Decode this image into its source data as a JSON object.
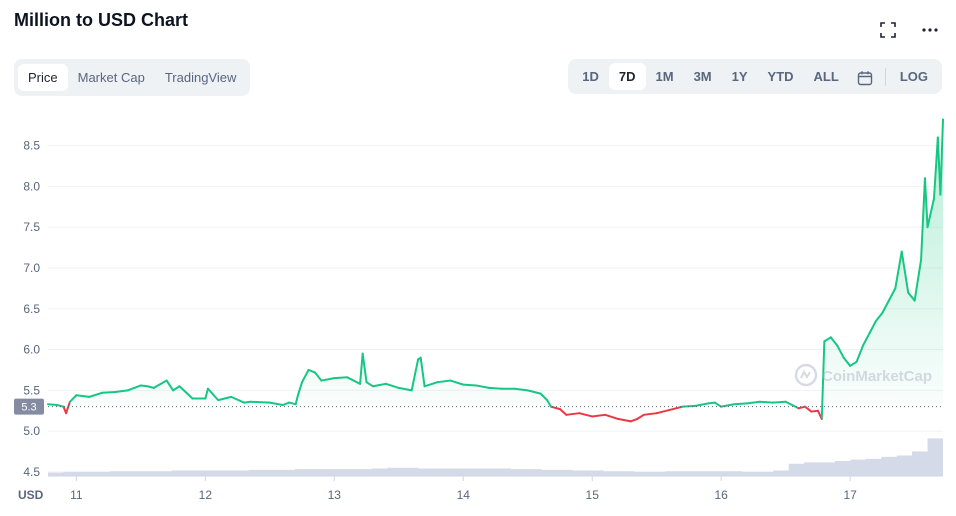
{
  "header": {
    "title": "Million to USD Chart",
    "fullscreen_icon": "expand-icon",
    "more_icon": "ellipsis-icon"
  },
  "left_tabs": [
    {
      "label": "Price",
      "active": true
    },
    {
      "label": "Market Cap",
      "active": false
    },
    {
      "label": "TradingView",
      "active": false
    }
  ],
  "ranges": [
    {
      "label": "1D",
      "active": false
    },
    {
      "label": "7D",
      "active": true
    },
    {
      "label": "1M",
      "active": false
    },
    {
      "label": "3M",
      "active": false
    },
    {
      "label": "1Y",
      "active": false
    },
    {
      "label": "YTD",
      "active": false
    },
    {
      "label": "ALL",
      "active": false
    }
  ],
  "calendar_icon": "calendar-icon",
  "log_label": "LOG",
  "watermark": "CoinMarketCap",
  "colors": {
    "up": "#16c784",
    "down": "#ea3943",
    "volume": "#cfd6e4",
    "grid": "#eff2f5",
    "badge": "#858ca2"
  },
  "chart_data": {
    "type": "line",
    "xlabel": "USD",
    "x_ticks": [
      "11",
      "12",
      "13",
      "14",
      "15",
      "16",
      "17"
    ],
    "x_range": [
      10.78,
      17.72
    ],
    "y_ticks": [
      4.5,
      5.0,
      5.5,
      6.0,
      6.5,
      7.0,
      7.5,
      8.0,
      8.5
    ],
    "ylim": [
      4.45,
      8.9
    ],
    "baseline": 5.3,
    "baseline_label": "5.3",
    "grid": true,
    "series": [
      {
        "x": [
          10.78,
          10.85,
          10.9,
          10.92,
          10.95,
          11.0,
          11.1,
          11.2,
          11.3,
          11.4,
          11.5,
          11.55,
          11.6,
          11.7,
          11.75,
          11.8,
          11.9,
          12.0,
          12.02,
          12.1,
          12.2,
          12.3,
          12.35,
          12.5,
          12.6,
          12.65,
          12.7,
          12.72,
          12.75,
          12.8,
          12.85,
          12.9,
          13.0,
          13.1,
          13.2,
          13.22,
          13.25,
          13.3,
          13.4,
          13.5,
          13.6,
          13.65,
          13.67,
          13.7,
          13.8,
          13.9,
          14.0,
          14.1,
          14.2,
          14.3,
          14.4,
          14.5,
          14.6,
          14.65,
          14.68,
          14.75,
          14.8,
          14.9,
          15.0,
          15.1,
          15.2,
          15.3,
          15.35,
          15.4,
          15.5,
          15.6,
          15.7,
          15.8,
          15.9,
          15.95,
          16.0,
          16.1,
          16.2,
          16.3,
          16.4,
          16.5,
          16.6,
          16.65,
          16.7,
          16.75,
          16.78,
          16.8,
          16.85,
          16.9,
          16.95,
          17.0,
          17.05,
          17.1,
          17.15,
          17.2,
          17.25,
          17.3,
          17.35,
          17.4,
          17.45,
          17.5,
          17.55,
          17.58,
          17.6,
          17.65,
          17.68,
          17.7,
          17.72
        ],
        "y": [
          5.33,
          5.32,
          5.3,
          5.22,
          5.36,
          5.44,
          5.42,
          5.47,
          5.48,
          5.5,
          5.56,
          5.55,
          5.53,
          5.62,
          5.5,
          5.55,
          5.4,
          5.4,
          5.52,
          5.38,
          5.42,
          5.35,
          5.36,
          5.35,
          5.32,
          5.35,
          5.33,
          5.45,
          5.6,
          5.75,
          5.72,
          5.62,
          5.65,
          5.66,
          5.58,
          5.95,
          5.6,
          5.55,
          5.58,
          5.53,
          5.5,
          5.88,
          5.9,
          5.55,
          5.6,
          5.62,
          5.57,
          5.56,
          5.53,
          5.52,
          5.52,
          5.5,
          5.46,
          5.38,
          5.3,
          5.27,
          5.2,
          5.22,
          5.18,
          5.2,
          5.15,
          5.12,
          5.15,
          5.2,
          5.22,
          5.26,
          5.3,
          5.31,
          5.34,
          5.35,
          5.3,
          5.33,
          5.34,
          5.36,
          5.35,
          5.36,
          5.28,
          5.3,
          5.24,
          5.25,
          5.15,
          6.1,
          6.15,
          6.05,
          5.9,
          5.8,
          5.85,
          6.05,
          6.2,
          6.35,
          6.45,
          6.6,
          6.75,
          7.2,
          6.7,
          6.6,
          7.1,
          8.1,
          7.5,
          7.85,
          8.6,
          7.9,
          8.82
        ]
      }
    ],
    "volume": [
      0.05,
      0.06,
      0.06,
      0.06,
      0.07,
      0.07,
      0.07,
      0.07,
      0.08,
      0.08,
      0.08,
      0.08,
      0.08,
      0.09,
      0.09,
      0.09,
      0.1,
      0.1,
      0.1,
      0.1,
      0.1,
      0.11,
      0.12,
      0.12,
      0.11,
      0.11,
      0.11,
      0.11,
      0.11,
      0.11,
      0.1,
      0.1,
      0.09,
      0.09,
      0.08,
      0.08,
      0.07,
      0.07,
      0.06,
      0.06,
      0.07,
      0.07,
      0.07,
      0.07,
      0.07,
      0.06,
      0.06,
      0.08,
      0.18,
      0.2,
      0.2,
      0.22,
      0.24,
      0.25,
      0.28,
      0.3,
      0.36,
      0.55
    ]
  }
}
